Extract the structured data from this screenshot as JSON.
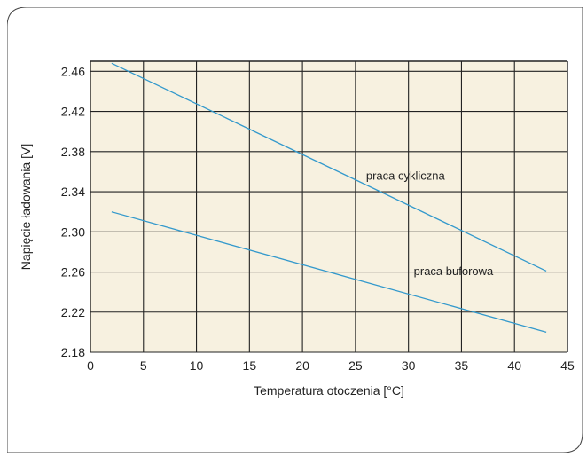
{
  "chart_data": {
    "type": "line",
    "xlabel": "Temperatura otoczenia [°C]",
    "ylabel": "Napięcie ładowania [V]",
    "xlim": [
      0,
      45
    ],
    "ylim": [
      2.18,
      2.47
    ],
    "x_ticks": [
      0,
      5,
      10,
      15,
      20,
      25,
      30,
      35,
      40,
      45
    ],
    "y_ticks": [
      2.18,
      2.22,
      2.26,
      2.3,
      2.34,
      2.38,
      2.42,
      2.46
    ],
    "x_tick_labels": [
      "0",
      "5",
      "10",
      "15",
      "20",
      "25",
      "30",
      "35",
      "40",
      "45"
    ],
    "y_tick_labels": [
      "2.18",
      "2.22",
      "2.26",
      "2.30",
      "2.34",
      "2.38",
      "2.42",
      "2.46"
    ],
    "grid": true,
    "series": [
      {
        "name": "praca cykliczna",
        "x": [
          2,
          43
        ],
        "y": [
          2.468,
          2.261
        ]
      },
      {
        "name": "praca buforowa",
        "x": [
          2,
          43
        ],
        "y": [
          2.32,
          2.2
        ]
      }
    ],
    "annotations": [
      {
        "text": "praca cykliczna",
        "x": 26,
        "y": 2.352
      },
      {
        "text": "praca buforowa",
        "x": 30.5,
        "y": 2.257
      }
    ],
    "colors": {
      "plot_background": "#f7f1e0",
      "line": "#3399cc",
      "grid": "#222222",
      "frame_border": "#444444"
    }
  }
}
